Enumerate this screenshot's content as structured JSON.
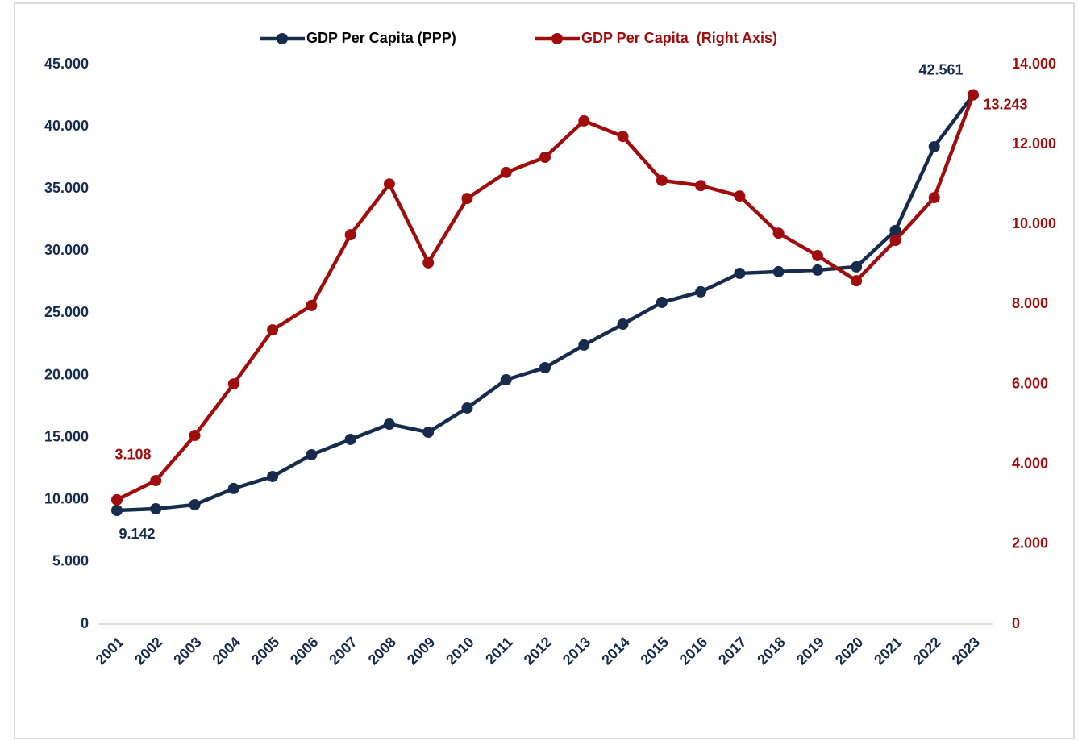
{
  "chart_data": {
    "type": "line",
    "categories": [
      "2001",
      "2002",
      "2003",
      "2004",
      "2005",
      "2006",
      "2007",
      "2008",
      "2009",
      "2010",
      "2011",
      "2012",
      "2013",
      "2014",
      "2015",
      "2016",
      "2017",
      "2018",
      "2019",
      "2020",
      "2021",
      "2022",
      "2023"
    ],
    "series": [
      {
        "name": "GDP Per Capita (PPP)",
        "color": "#172b4d",
        "values": [
          9142,
          9270,
          9600,
          10900,
          11870,
          13620,
          14850,
          16080,
          15430,
          17380,
          19650,
          20620,
          22440,
          24120,
          25870,
          26720,
          28210,
          28340,
          28470,
          28730,
          31650,
          38390,
          42561
        ],
        "value_labels": [
          "9.142",
          null,
          null,
          null,
          null,
          null,
          null,
          null,
          null,
          null,
          null,
          null,
          null,
          null,
          null,
          null,
          null,
          null,
          null,
          null,
          null,
          null,
          "42.561"
        ]
      },
      {
        "name": "GDP Per Capita  (Right Axis)",
        "color": "#a00d0d",
        "axis": "y2",
        "values": [
          3108,
          3590,
          4720,
          6010,
          7360,
          7970,
          9740,
          11010,
          9040,
          10650,
          11300,
          11680,
          12590,
          12200,
          11100,
          10970,
          10710,
          9780,
          9220,
          8590,
          9600,
          10670,
          13243
        ],
        "value_labels": [
          "3.108",
          null,
          null,
          null,
          null,
          null,
          null,
          null,
          null,
          null,
          null,
          null,
          null,
          null,
          null,
          null,
          null,
          null,
          null,
          null,
          null,
          null,
          "13.243"
        ]
      }
    ],
    "ylim": [
      0,
      45000
    ],
    "yticks": [
      0,
      {
        "value": 5000,
        "label": "5.000"
      },
      {
        "value": 10000,
        "label": "10.000"
      },
      {
        "value": 15000,
        "label": "15.000"
      },
      {
        "value": 20000,
        "label": "20.000"
      },
      {
        "value": 25000,
        "label": "25.000"
      },
      {
        "value": 30000,
        "label": "30.000"
      },
      {
        "value": 35000,
        "label": "35.000"
      },
      {
        "value": 40000,
        "label": "40.000"
      },
      {
        "value": 45000,
        "label": "45.000"
      }
    ],
    "y2lim": [
      0,
      14000
    ],
    "y2ticks": [
      0,
      {
        "value": 2000,
        "label": "2.000"
      },
      {
        "value": 4000,
        "label": "4.000"
      },
      {
        "value": 6000,
        "label": "6.000"
      },
      {
        "value": 8000,
        "label": "8.000"
      },
      {
        "value": 10000,
        "label": "10.000"
      },
      {
        "value": 12000,
        "label": "12.000"
      },
      {
        "value": 14000,
        "label": "14.000"
      }
    ],
    "legend": "top",
    "grid": false
  }
}
